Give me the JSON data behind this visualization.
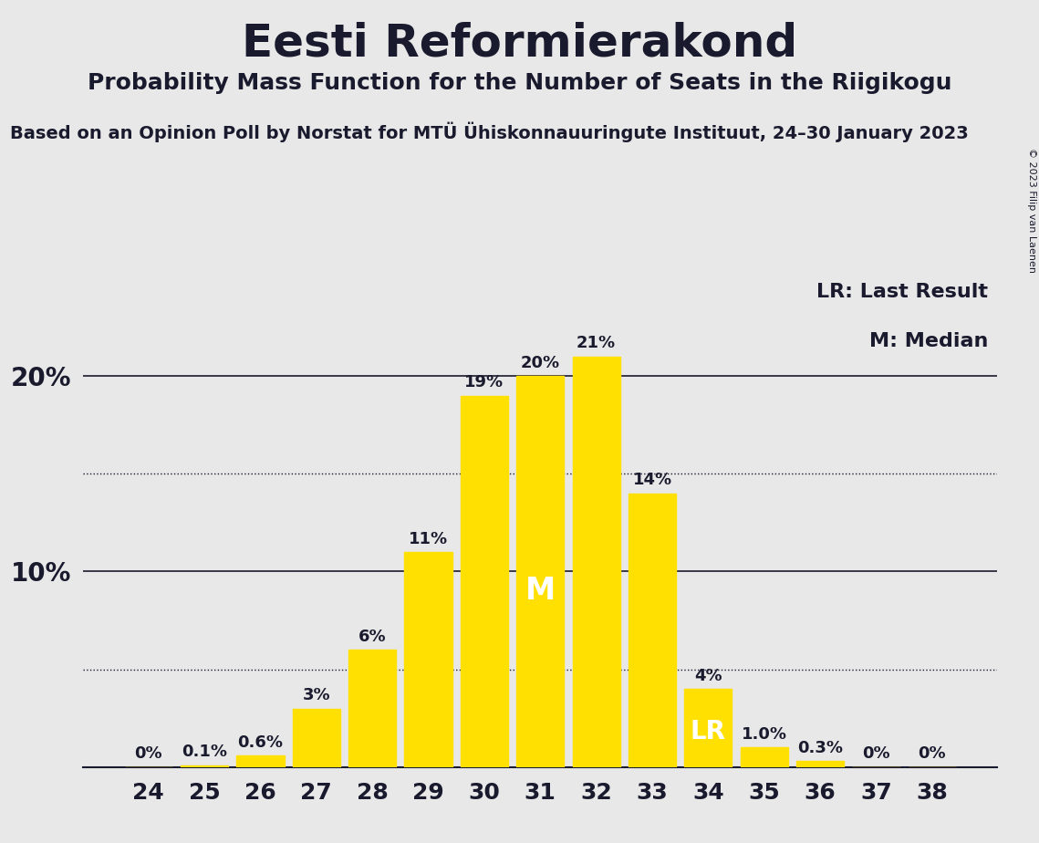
{
  "title": "Eesti Reformierakond",
  "subtitle": "Probability Mass Function for the Number of Seats in the Riigikogu",
  "source_line": "Based on an Opinion Poll by Norstat for MTÜ Ühiskonnauuringute Instituut, 24–30 January 2023",
  "copyright": "© 2023 Filip van Laenen",
  "categories": [
    24,
    25,
    26,
    27,
    28,
    29,
    30,
    31,
    32,
    33,
    34,
    35,
    36,
    37,
    38
  ],
  "values": [
    0.0,
    0.1,
    0.6,
    3.0,
    6.0,
    11.0,
    19.0,
    20.0,
    21.0,
    14.0,
    4.0,
    1.0,
    0.3,
    0.0,
    0.0
  ],
  "bar_labels": [
    "0%",
    "0.1%",
    "0.6%",
    "3%",
    "6%",
    "11%",
    "19%",
    "20%",
    "21%",
    "14%",
    "4%",
    "1.0%",
    "0.3%",
    "0%",
    "0%"
  ],
  "bar_color": "#FFE000",
  "background_color": "#E8E8E8",
  "median_seat": 31,
  "lr_seat": 34,
  "ylim": [
    0,
    25
  ],
  "hlines": [
    10.0,
    20.0
  ],
  "hlines_dotted": [
    5.0,
    15.0
  ],
  "legend_lr": "LR: Last Result",
  "legend_m": "M: Median",
  "title_fontsize": 36,
  "subtitle_fontsize": 18,
  "source_fontsize": 14
}
